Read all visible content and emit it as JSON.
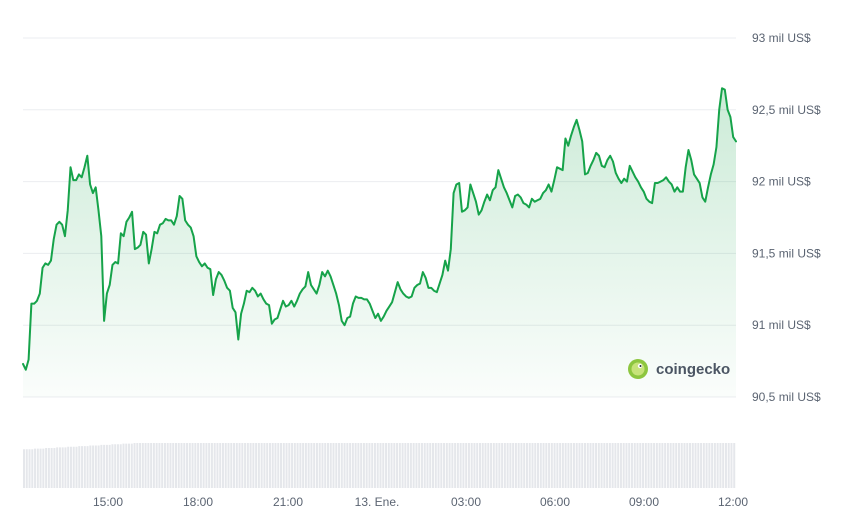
{
  "chart_data": {
    "type": "area",
    "title": "",
    "xlabel": "",
    "ylabel": "",
    "x_tick_labels": [
      "15:00",
      "18:00",
      "21:00",
      "13. Ene.",
      "03:00",
      "06:00",
      "09:00",
      "12:00"
    ],
    "y_tick_labels": [
      "93 mil US$",
      "92,5 mil US$",
      "92 mil US$",
      "91,5 mil US$",
      "91 mil US$",
      "90,5 mil US$"
    ],
    "y_ticks": [
      93000,
      92500,
      92000,
      91500,
      91000,
      90500
    ],
    "ylim": [
      90500,
      93000
    ],
    "grid": true,
    "x_start": "12:55",
    "x_end": "12:05",
    "line_color": "#16a34a",
    "fill_color": "#16a34a",
    "series": [
      {
        "values": [
          90730,
          90690,
          90760,
          91150,
          91150,
          91170,
          91220,
          91400,
          91430,
          91420,
          91450,
          91600,
          91700,
          91720,
          91700,
          91620,
          91800,
          92100,
          92010,
          92010,
          92050,
          92030,
          92100,
          92180,
          91980,
          91920,
          91960,
          91800,
          91620,
          91030,
          91220,
          91280,
          91420,
          91440,
          91430,
          91640,
          91620,
          91720,
          91750,
          91790,
          91530,
          91540,
          91560,
          91650,
          91630,
          91430,
          91530,
          91650,
          91640,
          91700,
          91710,
          91740,
          91730,
          91730,
          91700,
          91760,
          91900,
          91880,
          91730,
          91700,
          91680,
          91620,
          91480,
          91440,
          91410,
          91430,
          91400,
          91390,
          91210,
          91320,
          91370,
          91350,
          91310,
          91260,
          91240,
          91120,
          91090,
          90900,
          91080,
          91150,
          91240,
          91230,
          91260,
          91240,
          91200,
          91220,
          91180,
          91150,
          91140,
          91010,
          91040,
          91050,
          91110,
          91170,
          91130,
          91140,
          91170,
          91130,
          91170,
          91220,
          91250,
          91270,
          91370,
          91280,
          91250,
          91220,
          91280,
          91370,
          91340,
          91380,
          91340,
          91280,
          91220,
          91140,
          91030,
          91000,
          91050,
          91060,
          91150,
          91200,
          91190,
          91190,
          91180,
          91180,
          91150,
          91100,
          91050,
          91080,
          91030,
          91060,
          91100,
          91130,
          91160,
          91230,
          91300,
          91250,
          91220,
          91200,
          91190,
          91200,
          91260,
          91280,
          91290,
          91370,
          91330,
          91260,
          91260,
          91240,
          91230,
          91290,
          91350,
          91450,
          91380,
          91530,
          91920,
          91980,
          91990,
          91790,
          91800,
          91820,
          91980,
          91920,
          91860,
          91770,
          91800,
          91860,
          91910,
          91870,
          91940,
          91960,
          92080,
          92020,
          91960,
          91920,
          91870,
          91820,
          91900,
          91910,
          91890,
          91850,
          91840,
          91820,
          91880,
          91860,
          91870,
          91880,
          91920,
          91940,
          91980,
          91930,
          92010,
          92100,
          92090,
          92080,
          92300,
          92250,
          92320,
          92380,
          92430,
          92360,
          92280,
          92050,
          92060,
          92110,
          92150,
          92200,
          92180,
          92110,
          92100,
          92150,
          92180,
          92140,
          92060,
          92020,
          91990,
          92020,
          92000,
          92110,
          92070,
          92030,
          92000,
          91960,
          91930,
          91880,
          91860,
          91850,
          91990,
          91990,
          92000,
          92010,
          92030,
          92000,
          91980,
          91930,
          91960,
          91930,
          91930,
          92100,
          92220,
          92150,
          92050,
          92020,
          91990,
          91890,
          91860,
          91960,
          92050,
          92120,
          92240,
          92500,
          92650,
          92640,
          92500,
          92450,
          92310,
          92280
        ]
      }
    ],
    "volume_values": [
      62,
      62,
      62,
      62,
      63,
      63,
      63,
      63,
      64,
      64,
      64,
      64,
      65,
      65,
      65,
      65,
      66,
      66,
      66,
      66,
      67,
      67,
      67,
      67,
      68,
      68,
      68,
      68,
      69,
      69,
      69,
      69,
      70,
      70,
      70,
      70,
      71,
      71,
      71,
      71,
      72,
      72,
      72,
      72,
      72,
      72,
      72,
      72,
      72,
      72,
      72,
      72,
      72,
      72,
      72,
      72,
      72,
      72,
      72,
      72,
      72,
      72,
      72,
      72,
      72,
      72,
      72,
      72,
      72,
      72,
      72,
      72,
      72,
      72,
      72,
      72,
      72,
      72,
      72,
      72,
      72,
      72,
      72,
      72,
      72,
      72,
      72,
      72,
      72,
      72,
      72,
      72,
      72,
      72,
      72,
      72,
      72,
      72,
      72,
      72,
      72,
      72,
      72,
      72,
      72,
      72,
      72,
      72,
      72,
      72,
      72,
      72,
      72,
      72,
      72,
      72,
      72,
      72,
      72,
      72,
      72,
      72,
      72,
      72,
      72,
      72,
      72,
      72,
      72,
      72,
      72,
      72,
      72,
      72,
      72,
      72,
      72,
      72,
      72,
      72,
      72,
      72,
      72,
      72,
      72,
      72,
      72,
      72,
      72,
      72,
      72,
      72,
      72,
      72,
      72,
      72,
      72,
      72,
      72,
      72,
      72,
      72,
      72,
      72,
      72,
      72,
      72,
      72,
      72,
      72,
      72,
      72,
      72,
      72,
      72,
      72,
      72,
      72,
      72,
      72,
      72,
      72,
      72,
      72,
      72,
      72,
      72,
      72,
      72,
      72,
      72,
      72,
      72,
      72,
      72,
      72,
      72,
      72,
      72,
      72,
      72,
      72,
      72,
      72,
      72,
      72,
      72,
      72,
      72,
      72,
      72,
      72,
      72,
      72,
      72,
      72,
      72,
      72,
      72,
      72,
      72,
      72,
      72,
      72,
      72,
      72,
      72,
      72,
      72,
      72,
      72,
      72,
      72,
      72,
      72,
      72,
      72,
      72,
      72,
      72,
      72,
      72,
      72,
      72,
      72,
      72,
      72,
      72,
      72,
      72,
      72,
      72,
      72,
      72,
      72,
      72,
      72,
      72
    ]
  },
  "watermark": {
    "text": "coingecko",
    "icon": "gecko-logo-icon",
    "icon_color": "#8dc63f"
  }
}
